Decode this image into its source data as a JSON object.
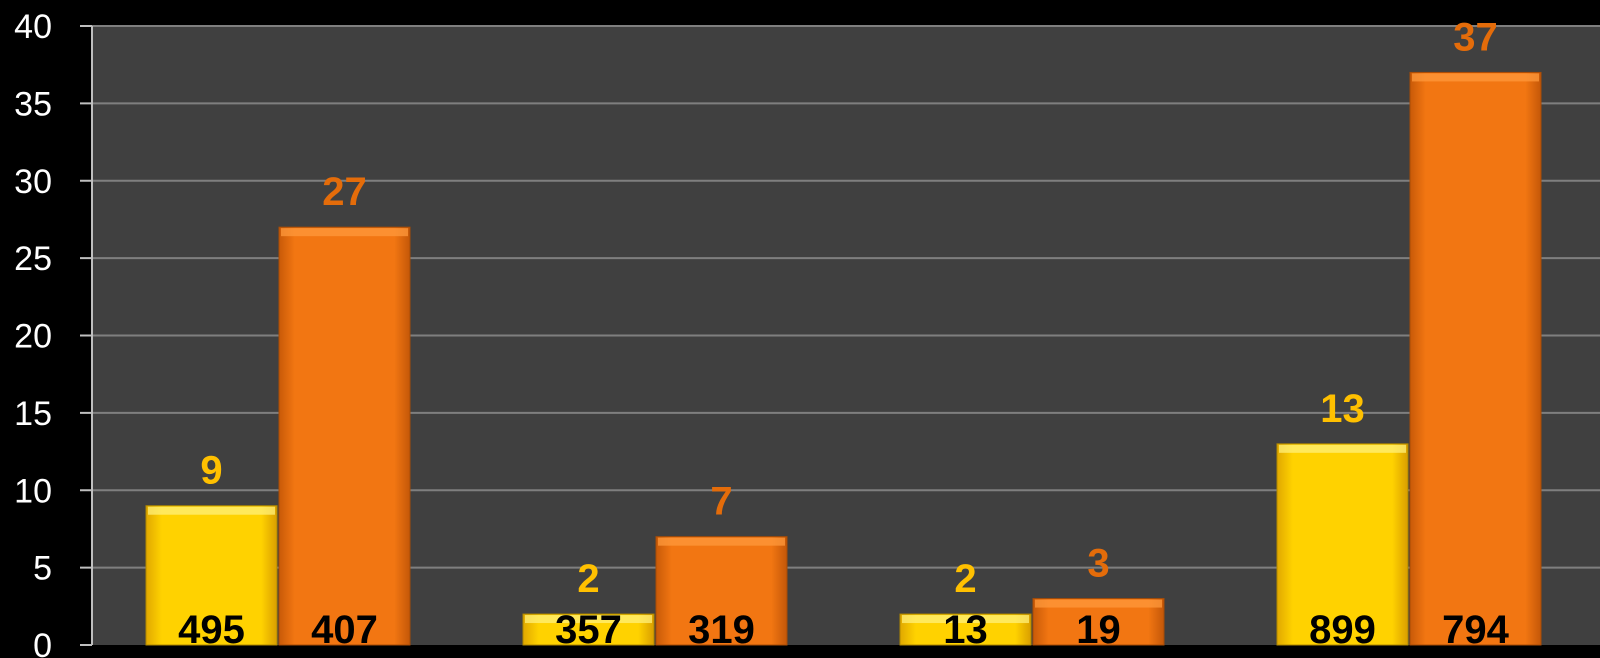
{
  "chart_data": {
    "type": "bar",
    "title": "",
    "xlabel": "",
    "ylabel": "",
    "ylim": [
      0,
      40
    ],
    "yticks": [
      0,
      5,
      10,
      15,
      20,
      25,
      30,
      35,
      40
    ],
    "grid": true,
    "legend": "none",
    "groups": 4,
    "series": [
      {
        "color": "#ffcc00",
        "label_color": "#ffc000",
        "values": [
          9,
          2,
          2,
          13
        ],
        "inner_labels": [
          "495",
          "357",
          "13",
          "899"
        ]
      },
      {
        "color": "#f07010",
        "label_color": "#e46c0a",
        "values": [
          27,
          7,
          3,
          37
        ],
        "inner_labels": [
          "407",
          "319",
          "19",
          "794"
        ]
      }
    ]
  },
  "colors": {
    "background": "#000000",
    "plot_area": "#404040",
    "gridline": "#7f7f7f",
    "axis": "#bfbfbf"
  }
}
